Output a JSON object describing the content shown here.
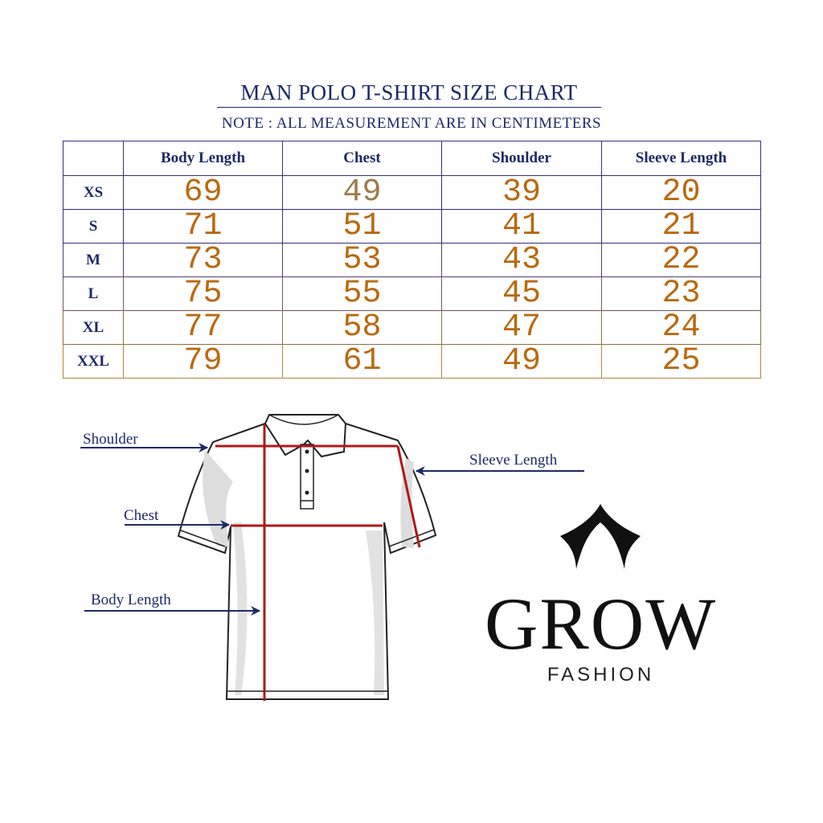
{
  "title": "MAN POLO T-SHIRT SIZE CHART",
  "note": "NOTE : ALL MEASUREMENT ARE IN CENTIMETERS",
  "table": {
    "headers": [
      "",
      "Body Length",
      "Chest",
      "Shoulder",
      "Sleeve Length"
    ],
    "rows": [
      {
        "size": "XS",
        "values": [
          "69",
          "49",
          "39",
          "20"
        ]
      },
      {
        "size": "S",
        "values": [
          "71",
          "51",
          "41",
          "21"
        ]
      },
      {
        "size": "M",
        "values": [
          "73",
          "53",
          "43",
          "22"
        ]
      },
      {
        "size": "L",
        "values": [
          "75",
          "55",
          "45",
          "23"
        ]
      },
      {
        "size": "XL",
        "values": [
          "77",
          "58",
          "47",
          "24"
        ]
      },
      {
        "size": "XXL",
        "values": [
          "79",
          "61",
          "49",
          "25"
        ]
      }
    ]
  },
  "diagram": {
    "labels": {
      "shoulder": "Shoulder",
      "chest": "Chest",
      "body_length": "Body Length",
      "sleeve_length": "Sleeve Length"
    },
    "measure_line_color": "#b01818",
    "arrow_color": "#1c2a66"
  },
  "logo": {
    "name": "GROW",
    "tagline": "FASHION",
    "icon": "crown-icon"
  },
  "colors": {
    "heading": "#1c2a66",
    "numbers": "#b8690f"
  }
}
